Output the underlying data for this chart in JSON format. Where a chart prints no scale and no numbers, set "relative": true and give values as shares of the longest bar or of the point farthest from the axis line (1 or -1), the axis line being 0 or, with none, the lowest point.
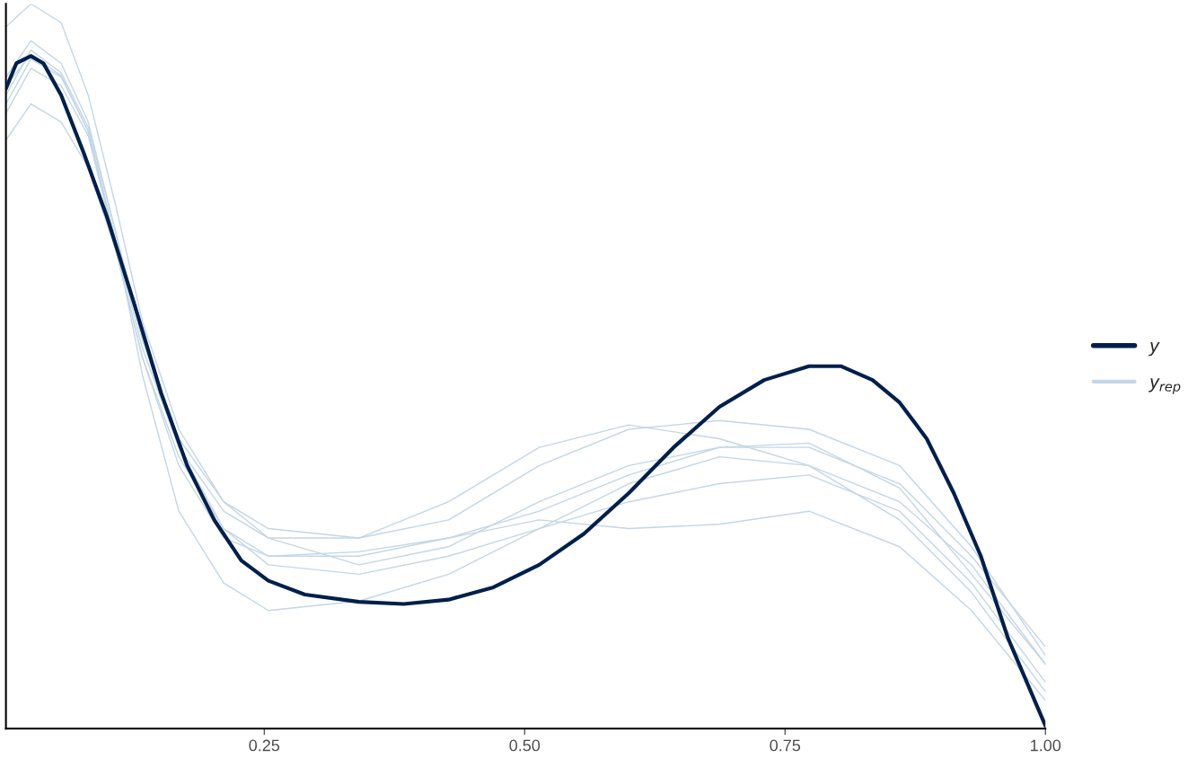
{
  "chart_data": {
    "type": "line",
    "relative": true,
    "xlim": [
      0.002,
      1.0
    ],
    "xticks": [
      {
        "value": 0.25,
        "label": "0.25"
      },
      {
        "value": 0.5,
        "label": "0.50"
      },
      {
        "value": 0.75,
        "label": "0.75"
      },
      {
        "value": 1.0,
        "label": "1.00"
      }
    ],
    "grid": false,
    "legend": "right",
    "marker": "none",
    "line_style": "solid",
    "series": [
      {
        "name": "y$_{rep}$",
        "color": "#c3d6e5",
        "x": [
          0.002,
          0.026,
          0.055,
          0.081,
          0.107,
          0.133,
          0.168,
          0.211,
          0.254,
          0.341,
          0.427,
          0.514,
          0.6,
          0.687,
          0.773,
          0.86,
          0.929,
          1.0
        ],
        "values": [
          0.968,
          1.0,
          0.974,
          0.874,
          0.724,
          0.562,
          0.413,
          0.313,
          0.263,
          0.226,
          0.251,
          0.313,
          0.363,
          0.388,
          0.388,
          0.338,
          0.238,
          0.113
        ]
      },
      {
        "color": "#c3d6e5",
        "x": [
          0.002,
          0.026,
          0.055,
          0.081,
          0.107,
          0.133,
          0.168,
          0.211,
          0.254,
          0.341,
          0.427,
          0.514,
          0.6,
          0.687,
          0.773,
          0.86,
          0.929,
          1.0
        ],
        "values": [
          0.812,
          0.862,
          0.837,
          0.774,
          0.662,
          0.512,
          0.375,
          0.276,
          0.226,
          0.213,
          0.238,
          0.276,
          0.313,
          0.338,
          0.35,
          0.3,
          0.201,
          0.064
        ]
      },
      {
        "color": "#c3d6e5",
        "x": [
          0.002,
          0.026,
          0.055,
          0.081,
          0.107,
          0.133,
          0.168,
          0.211,
          0.254,
          0.341,
          0.427,
          0.514,
          0.6,
          0.687,
          0.773,
          0.86,
          0.929,
          1.0
        ],
        "values": [
          0.899,
          0.949,
          0.918,
          0.837,
          0.687,
          0.537,
          0.388,
          0.276,
          0.238,
          0.238,
          0.263,
          0.3,
          0.35,
          0.388,
          0.394,
          0.332,
          0.213,
          0.089
        ]
      },
      {
        "color": "#c3d6e5",
        "x": [
          0.002,
          0.026,
          0.055,
          0.081,
          0.107,
          0.133,
          0.168,
          0.211,
          0.254,
          0.341,
          0.427,
          0.514,
          0.6,
          0.687,
          0.773,
          0.86,
          0.929,
          1.0
        ],
        "values": [
          0.862,
          0.924,
          0.899,
          0.824,
          0.675,
          0.488,
          0.3,
          0.201,
          0.163,
          0.176,
          0.213,
          0.276,
          0.338,
          0.375,
          0.363,
          0.288,
          0.188,
          0.051
        ]
      },
      {
        "color": "#c3d6e5",
        "x": [
          0.002,
          0.026,
          0.055,
          0.081,
          0.107,
          0.133,
          0.168,
          0.211,
          0.254,
          0.341,
          0.427,
          0.514,
          0.6,
          0.687,
          0.773,
          0.86,
          0.929,
          1.0
        ],
        "values": [
          0.874,
          0.936,
          0.905,
          0.83,
          0.687,
          0.537,
          0.4,
          0.313,
          0.276,
          0.263,
          0.288,
          0.363,
          0.413,
          0.425,
          0.413,
          0.363,
          0.251,
          0.101
        ]
      },
      {
        "color": "#c3d6e5",
        "x": [
          0.002,
          0.026,
          0.055,
          0.081,
          0.107,
          0.133,
          0.168,
          0.211,
          0.254,
          0.341,
          0.427,
          0.514,
          0.6,
          0.687,
          0.773,
          0.86,
          0.929,
          1.0
        ],
        "values": [
          0.887,
          0.93,
          0.901,
          0.824,
          0.675,
          0.525,
          0.388,
          0.3,
          0.263,
          0.263,
          0.313,
          0.388,
          0.419,
          0.4,
          0.363,
          0.313,
          0.226,
          0.089
        ]
      },
      {
        "color": "#c3d6e5",
        "x": [
          0.002,
          0.026,
          0.055,
          0.081,
          0.107,
          0.133,
          0.168,
          0.211,
          0.254,
          0.341,
          0.427,
          0.514,
          0.6,
          0.687,
          0.773,
          0.86,
          0.929,
          1.0
        ],
        "values": [
          0.849,
          0.911,
          0.887,
          0.818,
          0.668,
          0.512,
          0.363,
          0.263,
          0.238,
          0.244,
          0.263,
          0.288,
          0.276,
          0.282,
          0.3,
          0.251,
          0.163,
          0.039
        ]
      },
      {
        "name": "y",
        "color": "#011f4b",
        "x": [
          0.002,
          0.012,
          0.026,
          0.038,
          0.055,
          0.077,
          0.099,
          0.125,
          0.151,
          0.176,
          0.202,
          0.228,
          0.254,
          0.289,
          0.341,
          0.384,
          0.427,
          0.47,
          0.514,
          0.557,
          0.6,
          0.643,
          0.687,
          0.73,
          0.773,
          0.804,
          0.834,
          0.86,
          0.886,
          0.912,
          0.938,
          0.964,
          1.0
        ],
        "values": [
          0.883,
          0.918,
          0.928,
          0.918,
          0.874,
          0.793,
          0.706,
          0.587,
          0.463,
          0.363,
          0.288,
          0.232,
          0.204,
          0.185,
          0.175,
          0.172,
          0.178,
          0.195,
          0.226,
          0.269,
          0.325,
          0.388,
          0.444,
          0.481,
          0.5,
          0.5,
          0.481,
          0.45,
          0.4,
          0.325,
          0.238,
          0.125,
          0.004
        ]
      }
    ]
  }
}
